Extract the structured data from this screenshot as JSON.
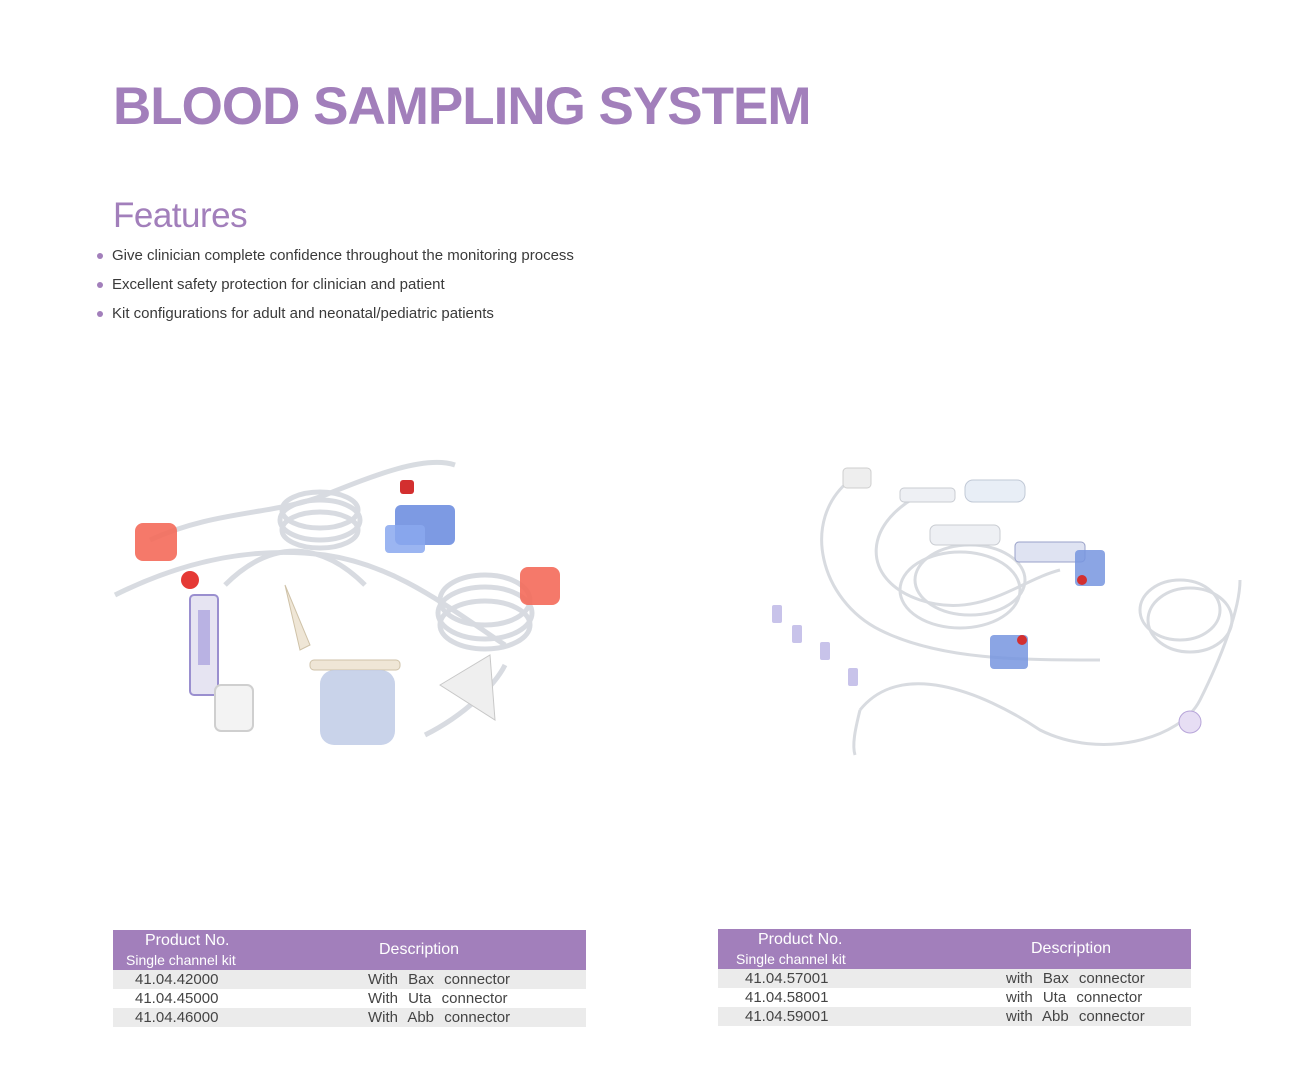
{
  "page": {
    "title": "BLOOD SAMPLING SYSTEM",
    "accent_color": "#a27fbb"
  },
  "features": {
    "heading": "Features",
    "items": [
      "Give clinician complete confidence throughout the monitoring process",
      "Excellent safety protection for clinician and patient",
      "Kit configurations for adult and neonatal/pediatric patients"
    ]
  },
  "tables": [
    {
      "header_product_no": "Product No.",
      "header_subtitle": "Single channel kit",
      "header_description": "Description",
      "rows": [
        {
          "product_no": "41.04.42000",
          "description": "With Bax connector"
        },
        {
          "product_no": "41.04.45000",
          "description": "With Uta connector"
        },
        {
          "product_no": "41.04.46000",
          "description": "With Abb connector"
        }
      ]
    },
    {
      "header_product_no": "Product No.",
      "header_subtitle": "Single channel kit",
      "header_description": "Description",
      "rows": [
        {
          "product_no": "41.04.57001",
          "description": "with Bax connector"
        },
        {
          "product_no": "41.04.58001",
          "description": "with Uta connector"
        },
        {
          "product_no": "41.04.59001",
          "description": "with Abb connector"
        }
      ]
    }
  ]
}
